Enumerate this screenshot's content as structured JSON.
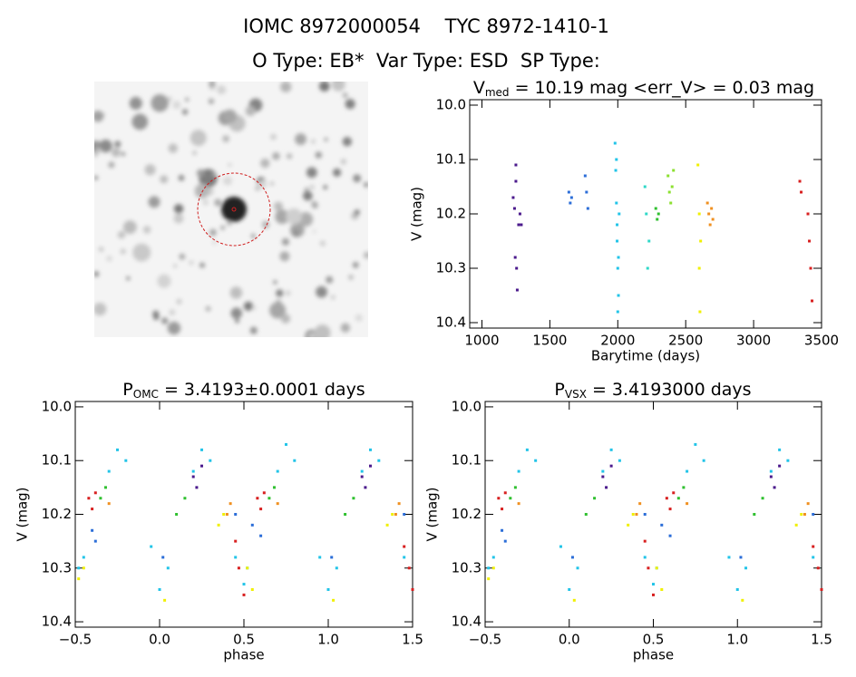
{
  "header": {
    "title": "IOMC 8972000054    TYC 8972-1410-1",
    "subtitle": "O Type: EB*  Var Type: ESD  SP Type:"
  },
  "chart_data": [
    {
      "type": "scatter",
      "title_parts": [
        "V",
        "med",
        " = 10.19 mag <err_V> = 0.03 mag"
      ],
      "x_label": "Barytime (days)",
      "y_label": "V (mag)",
      "xlim": [
        910,
        3500
      ],
      "xticks": [
        1000,
        1500,
        2000,
        2500,
        3000,
        3500
      ],
      "ylim": [
        10.41,
        9.99
      ],
      "yticks": [
        {
          "value": 10,
          "label": "10.0"
        },
        10.1,
        10.2,
        10.3,
        10.4
      ],
      "series": [
        {
          "color": "#4b1a8c",
          "x": [
            1230,
            1240,
            1245,
            1250,
            1250,
            1255,
            1260,
            1270,
            1280,
            1290
          ],
          "values": [
            10.17,
            10.19,
            10.28,
            10.11,
            10.14,
            10.3,
            10.34,
            10.22,
            10.2,
            10.22
          ]
        },
        {
          "color": "#2c6ed8",
          "x": [
            1640,
            1650,
            1660,
            1760,
            1770,
            1780
          ],
          "values": [
            10.16,
            10.18,
            10.17,
            10.13,
            10.16,
            10.19
          ]
        },
        {
          "color": "#22c4e8",
          "x": [
            1980,
            1985,
            1990,
            1995,
            2000,
            2005,
            2010,
            1990,
            1995,
            2000,
            2005
          ],
          "values": [
            10.07,
            10.12,
            10.18,
            10.25,
            10.3,
            10.35,
            10.2,
            10.1,
            10.22,
            10.38,
            10.28
          ]
        },
        {
          "color": "#30d8c8",
          "x": [
            2200,
            2210,
            2220,
            2230
          ],
          "values": [
            10.15,
            10.2,
            10.3,
            10.25
          ]
        },
        {
          "color": "#30c030",
          "x": [
            2280,
            2290,
            2300
          ],
          "values": [
            10.19,
            10.21,
            10.2
          ]
        },
        {
          "color": "#8ce030",
          "x": [
            2370,
            2380,
            2390,
            2400,
            2410
          ],
          "values": [
            10.13,
            10.16,
            10.18,
            10.15,
            10.12
          ]
        },
        {
          "color": "#f0f000",
          "x": [
            2590,
            2600,
            2600,
            2605,
            2610
          ],
          "values": [
            10.11,
            10.2,
            10.3,
            10.38,
            10.25
          ]
        },
        {
          "color": "#f09020",
          "x": [
            2660,
            2670,
            2680,
            2690,
            2700
          ],
          "values": [
            10.18,
            10.2,
            10.22,
            10.19,
            10.21
          ]
        },
        {
          "color": "#d82020",
          "x": [
            3340,
            3350,
            3400,
            3410,
            3420,
            3430
          ],
          "values": [
            10.14,
            10.16,
            10.2,
            10.25,
            10.3,
            10.36
          ]
        }
      ]
    },
    {
      "type": "scatter",
      "title_parts": [
        "P",
        "OMC",
        " = 3.4193±0.0001 days"
      ],
      "x_label": "phase",
      "y_label": "V (mag)",
      "xlim": [
        -0.5,
        1.5
      ],
      "xticks": [
        {
          "value": -0.5,
          "label": "−0.5"
        },
        {
          "value": 0,
          "label": "0.0"
        },
        0.5,
        {
          "value": 1,
          "label": "1.0"
        },
        1.5
      ],
      "ylim": [
        10.41,
        9.99
      ],
      "yticks": [
        {
          "value": 10,
          "label": "10.0"
        },
        10.1,
        10.2,
        10.3,
        10.4
      ],
      "series": [
        {
          "color": "#22c4e8",
          "x": [
            -0.48,
            -0.45,
            -0.3,
            -0.25,
            -0.2,
            -0.05,
            0.0,
            0.05,
            0.2,
            0.25,
            0.3,
            0.45,
            0.5,
            0.52,
            0.7,
            0.75,
            0.8,
            0.95,
            1.0,
            1.05,
            1.2,
            1.25,
            1.3,
            1.45,
            1.5
          ],
          "values": [
            10.3,
            10.28,
            10.12,
            10.08,
            10.1,
            10.26,
            10.34,
            10.3,
            10.12,
            10.08,
            10.1,
            10.28,
            10.33,
            10.3,
            10.12,
            10.07,
            10.1,
            10.28,
            10.34,
            10.3,
            10.12,
            10.08,
            10.1,
            10.28,
            10.34
          ]
        },
        {
          "color": "#d82020",
          "x": [
            -0.42,
            -0.4,
            -0.38,
            0.45,
            0.47,
            0.5,
            0.58,
            0.6,
            0.62,
            1.45,
            1.48,
            1.5
          ],
          "values": [
            10.17,
            10.19,
            10.16,
            10.25,
            10.3,
            10.35,
            10.17,
            10.19,
            10.16,
            10.26,
            10.3,
            10.34
          ]
        },
        {
          "color": "#4b1a8c",
          "x": [
            0.2,
            0.22,
            0.25,
            1.2,
            1.22,
            1.25
          ],
          "values": [
            10.13,
            10.15,
            10.11,
            10.13,
            10.15,
            10.11
          ]
        },
        {
          "color": "#2c6ed8",
          "x": [
            -0.4,
            -0.38,
            0.02,
            0.45,
            0.55,
            0.6,
            1.02,
            1.45
          ],
          "values": [
            10.23,
            10.25,
            10.28,
            10.2,
            10.22,
            10.24,
            10.28,
            10.2
          ]
        },
        {
          "color": "#30c030",
          "x": [
            -0.35,
            -0.32,
            0.1,
            0.15,
            0.65,
            0.68,
            1.1,
            1.15
          ],
          "values": [
            10.17,
            10.15,
            10.2,
            10.17,
            10.17,
            10.15,
            10.2,
            10.17
          ]
        },
        {
          "color": "#f0f000",
          "x": [
            -0.48,
            -0.45,
            0.03,
            0.35,
            0.38,
            0.52,
            0.55,
            1.03,
            1.35,
            1.38
          ],
          "values": [
            10.32,
            10.3,
            10.36,
            10.22,
            10.2,
            10.3,
            10.34,
            10.36,
            10.22,
            10.2
          ]
        },
        {
          "color": "#f09020",
          "x": [
            -0.3,
            0.4,
            0.42,
            0.7,
            1.4,
            1.42
          ],
          "values": [
            10.18,
            10.2,
            10.18,
            10.18,
            10.2,
            10.18
          ]
        }
      ]
    },
    {
      "type": "scatter",
      "title_parts": [
        "P",
        "VSX",
        " = 3.4193000 days"
      ],
      "x_label": "phase",
      "y_label": "V (mag)",
      "xlim": [
        -0.5,
        1.5
      ],
      "xticks": [
        {
          "value": -0.5,
          "label": "−0.5"
        },
        {
          "value": 0,
          "label": "0.0"
        },
        0.5,
        {
          "value": 1,
          "label": "1.0"
        },
        1.5
      ],
      "ylim": [
        10.41,
        9.99
      ],
      "yticks": [
        {
          "value": 10,
          "label": "10.0"
        },
        10.1,
        10.2,
        10.3,
        10.4
      ],
      "series": [
        {
          "color": "#22c4e8",
          "x": [
            -0.48,
            -0.45,
            -0.3,
            -0.25,
            -0.2,
            -0.05,
            0.0,
            0.05,
            0.2,
            0.25,
            0.3,
            0.45,
            0.5,
            0.52,
            0.7,
            0.75,
            0.8,
            0.95,
            1.0,
            1.05,
            1.2,
            1.25,
            1.3,
            1.45,
            1.5
          ],
          "values": [
            10.3,
            10.28,
            10.12,
            10.08,
            10.1,
            10.26,
            10.34,
            10.3,
            10.12,
            10.08,
            10.1,
            10.28,
            10.33,
            10.3,
            10.12,
            10.07,
            10.1,
            10.28,
            10.34,
            10.3,
            10.12,
            10.08,
            10.1,
            10.28,
            10.34
          ]
        },
        {
          "color": "#d82020",
          "x": [
            -0.42,
            -0.4,
            -0.38,
            0.45,
            0.47,
            0.5,
            0.58,
            0.6,
            0.62,
            1.45,
            1.48,
            1.5
          ],
          "values": [
            10.17,
            10.19,
            10.16,
            10.25,
            10.3,
            10.35,
            10.17,
            10.19,
            10.16,
            10.26,
            10.3,
            10.34
          ]
        },
        {
          "color": "#4b1a8c",
          "x": [
            0.2,
            0.22,
            0.25,
            1.2,
            1.22,
            1.25
          ],
          "values": [
            10.13,
            10.15,
            10.11,
            10.13,
            10.15,
            10.11
          ]
        },
        {
          "color": "#2c6ed8",
          "x": [
            -0.4,
            -0.38,
            0.02,
            0.45,
            0.55,
            0.6,
            1.02,
            1.45
          ],
          "values": [
            10.23,
            10.25,
            10.28,
            10.2,
            10.22,
            10.24,
            10.28,
            10.2
          ]
        },
        {
          "color": "#30c030",
          "x": [
            -0.35,
            -0.32,
            0.1,
            0.15,
            0.65,
            0.68,
            1.1,
            1.15
          ],
          "values": [
            10.17,
            10.15,
            10.2,
            10.17,
            10.17,
            10.15,
            10.2,
            10.17
          ]
        },
        {
          "color": "#f0f000",
          "x": [
            -0.48,
            -0.45,
            0.03,
            0.35,
            0.38,
            0.52,
            0.55,
            1.03,
            1.35,
            1.38
          ],
          "values": [
            10.32,
            10.3,
            10.36,
            10.22,
            10.2,
            10.3,
            10.34,
            10.36,
            10.22,
            10.2
          ]
        },
        {
          "color": "#f09020",
          "x": [
            -0.3,
            0.4,
            0.42,
            0.7,
            1.4,
            1.42
          ],
          "values": [
            10.18,
            10.2,
            10.18,
            10.18,
            10.2,
            10.18
          ]
        }
      ]
    }
  ]
}
